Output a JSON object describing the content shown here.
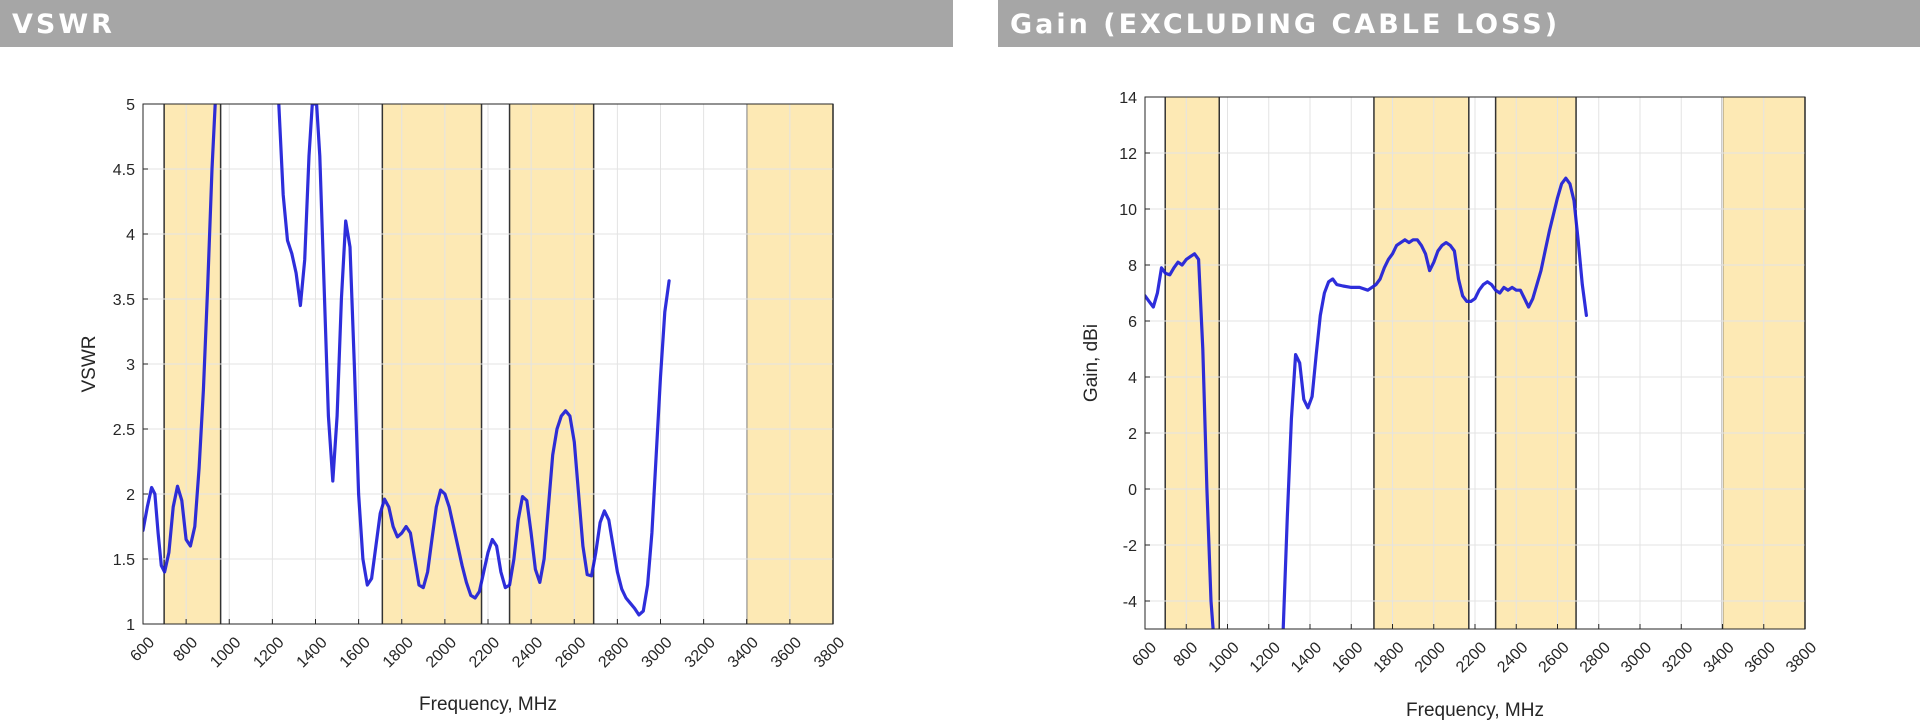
{
  "panels": {
    "left": {
      "header": "VSWR"
    },
    "right": {
      "header": "Gain (EXCLUDING CABLE LOSS)"
    }
  },
  "colors": {
    "series": "#1c1cd8",
    "band_fill": "#fde9b4",
    "band_edge": "#333333",
    "grid": "#e3e3e3",
    "axis": "#262626",
    "header_bg": "#a6a6a6"
  },
  "chart_data": [
    {
      "type": "line",
      "xlabel": "Frequency, MHz",
      "ylabel": "VSWR",
      "xlim": [
        600,
        3800
      ],
      "ylim": [
        1,
        5
      ],
      "xticks": [
        600,
        800,
        1000,
        1200,
        1400,
        1600,
        1800,
        2000,
        2200,
        2400,
        2600,
        2800,
        3000,
        3200,
        3400,
        3600,
        3800
      ],
      "yticks": [
        1,
        1.5,
        2,
        2.5,
        3,
        3.5,
        4,
        4.5,
        5
      ],
      "ytick_labels": [
        "1",
        "1.5",
        "2",
        "2.5",
        "3",
        "3.5",
        "4",
        "4.5",
        "5"
      ],
      "grid": true,
      "shaded_bands": [
        [
          698,
          960
        ],
        [
          1710,
          2170
        ],
        [
          2300,
          2690
        ],
        [
          3400,
          3800
        ]
      ],
      "series": [
        {
          "segments": [
            [
              [
                600,
                1.72
              ],
              [
                620,
                1.9
              ],
              [
                640,
                2.05
              ],
              [
                655,
                2.0
              ],
              [
                670,
                1.7
              ],
              [
                685,
                1.45
              ],
              [
                700,
                1.4
              ],
              [
                720,
                1.55
              ],
              [
                740,
                1.9
              ],
              [
                760,
                2.06
              ],
              [
                780,
                1.95
              ],
              [
                800,
                1.65
              ],
              [
                820,
                1.6
              ],
              [
                840,
                1.75
              ],
              [
                860,
                2.2
              ],
              [
                880,
                2.8
              ],
              [
                900,
                3.6
              ],
              [
                920,
                4.5
              ],
              [
                935,
                5.0
              ]
            ],
            [
              [
                1230,
                5.0
              ],
              [
                1250,
                4.3
              ],
              [
                1270,
                3.95
              ],
              [
                1290,
                3.85
              ],
              [
                1310,
                3.7
              ],
              [
                1330,
                3.45
              ],
              [
                1350,
                3.8
              ],
              [
                1370,
                4.6
              ],
              [
                1385,
                5.0
              ],
              [
                1405,
                5.0
              ],
              [
                1420,
                4.6
              ],
              [
                1440,
                3.6
              ],
              [
                1460,
                2.6
              ],
              [
                1480,
                2.1
              ],
              [
                1500,
                2.6
              ],
              [
                1520,
                3.5
              ],
              [
                1540,
                4.1
              ],
              [
                1560,
                3.9
              ],
              [
                1580,
                3.0
              ],
              [
                1600,
                2.0
              ],
              [
                1620,
                1.5
              ],
              [
                1640,
                1.3
              ],
              [
                1660,
                1.35
              ],
              [
                1680,
                1.6
              ],
              [
                1700,
                1.85
              ],
              [
                1720,
                1.96
              ],
              [
                1740,
                1.9
              ],
              [
                1760,
                1.75
              ],
              [
                1780,
                1.67
              ],
              [
                1800,
                1.7
              ],
              [
                1820,
                1.75
              ],
              [
                1840,
                1.7
              ],
              [
                1860,
                1.5
              ],
              [
                1880,
                1.3
              ],
              [
                1900,
                1.28
              ],
              [
                1920,
                1.4
              ],
              [
                1940,
                1.65
              ],
              [
                1960,
                1.9
              ],
              [
                1980,
                2.03
              ],
              [
                2000,
                2.0
              ],
              [
                2020,
                1.9
              ],
              [
                2040,
                1.75
              ],
              [
                2060,
                1.6
              ],
              [
                2080,
                1.45
              ],
              [
                2100,
                1.32
              ],
              [
                2120,
                1.22
              ],
              [
                2140,
                1.2
              ],
              [
                2160,
                1.25
              ],
              [
                2180,
                1.4
              ],
              [
                2200,
                1.55
              ],
              [
                2220,
                1.65
              ],
              [
                2240,
                1.6
              ],
              [
                2260,
                1.4
              ],
              [
                2280,
                1.28
              ],
              [
                2300,
                1.3
              ],
              [
                2320,
                1.5
              ],
              [
                2340,
                1.8
              ],
              [
                2360,
                1.98
              ],
              [
                2380,
                1.95
              ],
              [
                2400,
                1.7
              ],
              [
                2420,
                1.42
              ],
              [
                2440,
                1.32
              ],
              [
                2460,
                1.5
              ],
              [
                2480,
                1.9
              ],
              [
                2500,
                2.3
              ],
              [
                2520,
                2.5
              ],
              [
                2540,
                2.6
              ],
              [
                2560,
                2.64
              ],
              [
                2580,
                2.6
              ],
              [
                2600,
                2.4
              ],
              [
                2620,
                2.0
              ],
              [
                2640,
                1.6
              ],
              [
                2660,
                1.38
              ],
              [
                2680,
                1.37
              ],
              [
                2700,
                1.55
              ],
              [
                2720,
                1.78
              ],
              [
                2740,
                1.87
              ],
              [
                2760,
                1.8
              ],
              [
                2780,
                1.6
              ],
              [
                2800,
                1.4
              ],
              [
                2820,
                1.27
              ],
              [
                2840,
                1.2
              ],
              [
                2860,
                1.16
              ],
              [
                2880,
                1.12
              ],
              [
                2900,
                1.07
              ],
              [
                2920,
                1.1
              ],
              [
                2940,
                1.3
              ],
              [
                2960,
                1.7
              ],
              [
                2980,
                2.3
              ],
              [
                3000,
                2.9
              ],
              [
                3020,
                3.4
              ],
              [
                3040,
                3.64
              ]
            ]
          ]
        }
      ]
    },
    {
      "type": "line",
      "xlabel": "Frequency, MHz",
      "ylabel": "Gain, dBi",
      "xlim": [
        600,
        3800
      ],
      "ylim": [
        -5,
        14
      ],
      "xticks": [
        600,
        800,
        1000,
        1200,
        1400,
        1600,
        1800,
        2000,
        2200,
        2400,
        2600,
        2800,
        3000,
        3200,
        3400,
        3600,
        3800
      ],
      "yticks": [
        -4,
        -2,
        0,
        2,
        4,
        6,
        8,
        10,
        12,
        14
      ],
      "ytick_labels": [
        "-4",
        "-2",
        "0",
        "2",
        "4",
        "6",
        "8",
        "10",
        "12",
        "14"
      ],
      "grid": true,
      "shaded_bands": [
        [
          698,
          960
        ],
        [
          1710,
          2170
        ],
        [
          2300,
          2690
        ],
        [
          3400,
          3800
        ]
      ],
      "series": [
        {
          "segments": [
            [
              [
                600,
                6.9
              ],
              [
                620,
                6.7
              ],
              [
                640,
                6.5
              ],
              [
                660,
                7.0
              ],
              [
                680,
                7.9
              ],
              [
                700,
                7.7
              ],
              [
                720,
                7.65
              ],
              [
                740,
                7.9
              ],
              [
                760,
                8.1
              ],
              [
                780,
                8.0
              ],
              [
                800,
                8.2
              ],
              [
                820,
                8.3
              ],
              [
                840,
                8.4
              ],
              [
                860,
                8.2
              ],
              [
                880,
                5.0
              ],
              [
                900,
                0.0
              ],
              [
                920,
                -4.0
              ],
              [
                930,
                -5.0
              ]
            ],
            [
              [
                1270,
                -5.0
              ],
              [
                1290,
                -1.0
              ],
              [
                1310,
                2.5
              ],
              [
                1330,
                4.8
              ],
              [
                1350,
                4.5
              ],
              [
                1370,
                3.2
              ],
              [
                1390,
                2.9
              ],
              [
                1410,
                3.3
              ],
              [
                1430,
                4.8
              ],
              [
                1450,
                6.2
              ],
              [
                1470,
                7.0
              ],
              [
                1490,
                7.4
              ],
              [
                1510,
                7.5
              ],
              [
                1530,
                7.3
              ],
              [
                1560,
                7.25
              ],
              [
                1600,
                7.2
              ],
              [
                1640,
                7.2
              ],
              [
                1680,
                7.1
              ],
              [
                1700,
                7.2
              ],
              [
                1720,
                7.3
              ],
              [
                1740,
                7.5
              ],
              [
                1760,
                7.9
              ],
              [
                1780,
                8.2
              ],
              [
                1800,
                8.4
              ],
              [
                1820,
                8.7
              ],
              [
                1840,
                8.8
              ],
              [
                1860,
                8.9
              ],
              [
                1880,
                8.8
              ],
              [
                1900,
                8.9
              ],
              [
                1920,
                8.9
              ],
              [
                1940,
                8.7
              ],
              [
                1960,
                8.4
              ],
              [
                1980,
                7.8
              ],
              [
                2000,
                8.1
              ],
              [
                2020,
                8.5
              ],
              [
                2040,
                8.7
              ],
              [
                2060,
                8.8
              ],
              [
                2080,
                8.7
              ],
              [
                2100,
                8.5
              ],
              [
                2120,
                7.5
              ],
              [
                2140,
                6.9
              ],
              [
                2160,
                6.7
              ],
              [
                2180,
                6.7
              ],
              [
                2200,
                6.8
              ],
              [
                2220,
                7.1
              ],
              [
                2240,
                7.3
              ],
              [
                2260,
                7.4
              ],
              [
                2280,
                7.3
              ],
              [
                2300,
                7.1
              ],
              [
                2320,
                7.0
              ],
              [
                2340,
                7.2
              ],
              [
                2360,
                7.1
              ],
              [
                2380,
                7.2
              ],
              [
                2400,
                7.1
              ],
              [
                2420,
                7.1
              ],
              [
                2440,
                6.8
              ],
              [
                2460,
                6.5
              ],
              [
                2480,
                6.8
              ],
              [
                2500,
                7.3
              ],
              [
                2520,
                7.8
              ],
              [
                2540,
                8.5
              ],
              [
                2560,
                9.2
              ],
              [
                2580,
                9.8
              ],
              [
                2600,
                10.4
              ],
              [
                2620,
                10.9
              ],
              [
                2640,
                11.1
              ],
              [
                2660,
                10.9
              ],
              [
                2680,
                10.3
              ],
              [
                2700,
                8.9
              ],
              [
                2720,
                7.3
              ],
              [
                2740,
                6.2
              ]
            ]
          ]
        }
      ]
    }
  ]
}
